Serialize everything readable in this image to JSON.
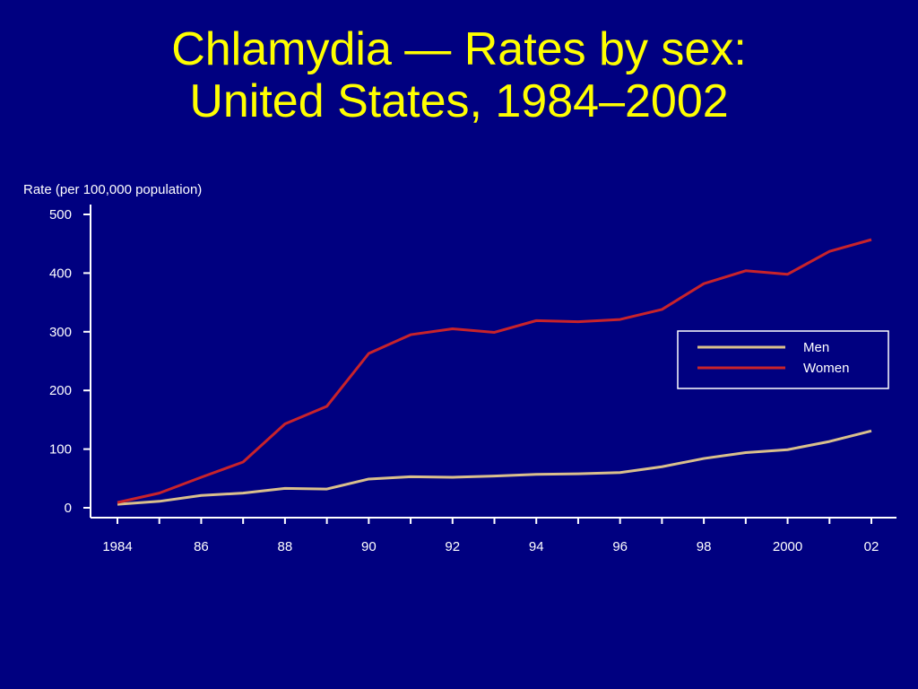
{
  "colors": {
    "background": "#000080",
    "title": "#FFFF00",
    "axis": "#FFFFFF",
    "men": "#D9BF8C",
    "women": "#C8232B"
  },
  "chart_data": {
    "type": "line",
    "title_line1": "Chlamydia — Rates by sex:",
    "title_line2": "United States, 1984–2002",
    "ylabel": "Rate (per 100,000 population)",
    "xlabel": "",
    "ylim": [
      0,
      500
    ],
    "yticks": [
      0,
      100,
      200,
      300,
      400,
      500
    ],
    "xlim": [
      1984,
      2002
    ],
    "x": [
      1984,
      1985,
      1986,
      1987,
      1988,
      1989,
      1990,
      1991,
      1992,
      1993,
      1994,
      1995,
      1996,
      1997,
      1998,
      1999,
      2000,
      2001,
      2002
    ],
    "xtick_labels": [
      {
        "x": 1984,
        "label": "1984"
      },
      {
        "x": 1986,
        "label": "86"
      },
      {
        "x": 1988,
        "label": "88"
      },
      {
        "x": 1990,
        "label": "90"
      },
      {
        "x": 1992,
        "label": "92"
      },
      {
        "x": 1994,
        "label": "94"
      },
      {
        "x": 1996,
        "label": "96"
      },
      {
        "x": 1998,
        "label": "98"
      },
      {
        "x": 2000,
        "label": "2000"
      },
      {
        "x": 2002,
        "label": "02"
      }
    ],
    "legend_position": "right",
    "grid": false,
    "series": [
      {
        "name": "Men",
        "values": [
          6,
          11,
          21,
          25,
          33,
          32,
          49,
          53,
          52,
          54,
          57,
          58,
          60,
          70,
          84,
          94,
          99,
          113,
          131
        ]
      },
      {
        "name": "Women",
        "values": [
          9,
          25,
          52,
          78,
          143,
          173,
          263,
          295,
          305,
          299,
          319,
          317,
          321,
          338,
          382,
          404,
          398,
          437,
          457
        ]
      }
    ]
  }
}
